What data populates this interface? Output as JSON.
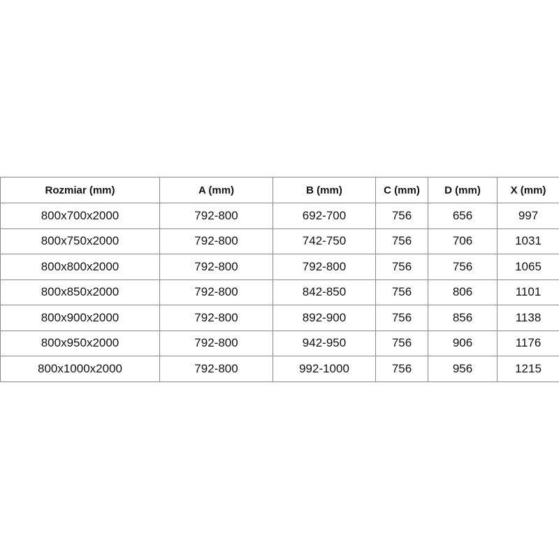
{
  "table": {
    "headers": [
      "Rozmiar (mm)",
      "A (mm)",
      "B (mm)",
      "C (mm)",
      "D (mm)",
      "X (mm)"
    ],
    "rows": [
      [
        "800x700x2000",
        "792-800",
        "692-700",
        "756",
        "656",
        "997"
      ],
      [
        "800x750x2000",
        "792-800",
        "742-750",
        "756",
        "706",
        "1031"
      ],
      [
        "800x800x2000",
        "792-800",
        "792-800",
        "756",
        "756",
        "1065"
      ],
      [
        "800x850x2000",
        "792-800",
        "842-850",
        "756",
        "806",
        "1101"
      ],
      [
        "800x900x2000",
        "792-800",
        "892-900",
        "756",
        "856",
        "1138"
      ],
      [
        "800x950x2000",
        "792-800",
        "942-950",
        "756",
        "906",
        "1176"
      ],
      [
        "800x1000x2000",
        "792-800",
        "992-1000",
        "756",
        "956",
        "1215"
      ]
    ]
  }
}
